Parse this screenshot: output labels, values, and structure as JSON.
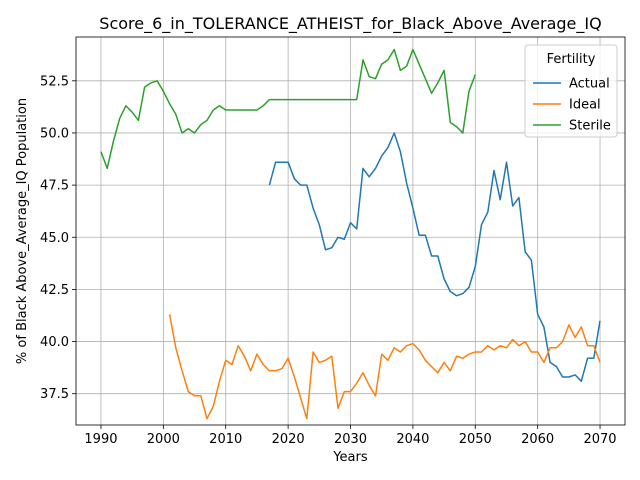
{
  "chart_data": {
    "type": "line",
    "title": "Score_6_in_TOLERANCE_ATHEIST_for_Black_Above_Average_IQ",
    "xlabel": "Years",
    "ylabel": "% of Black Above_Average_IQ Population",
    "xlim": [
      1986.0,
      2074.0
    ],
    "ylim": [
      36.0,
      54.6
    ],
    "xticks": [
      1990,
      2000,
      2010,
      2020,
      2030,
      2040,
      2050,
      2060,
      2070
    ],
    "yticks": [
      37.5,
      40.0,
      42.5,
      45.0,
      47.5,
      50.0,
      52.5
    ],
    "ytick_labels": [
      "37.5",
      "40.0",
      "42.5",
      "45.0",
      "47.5",
      "50.0",
      "52.5"
    ],
    "grid": true,
    "legend": {
      "title": "Fertility",
      "placement": "top-right"
    },
    "series": [
      {
        "name": "Actual",
        "color": "#1f77b4",
        "x": [
          2017,
          2018,
          2019,
          2020,
          2021,
          2022,
          2023,
          2024,
          2025,
          2026,
          2027,
          2028,
          2029,
          2030,
          2031,
          2032,
          2033,
          2034,
          2035,
          2036,
          2037,
          2038,
          2039,
          2040,
          2041,
          2042,
          2043,
          2044,
          2045,
          2046,
          2047,
          2048,
          2049,
          2050,
          2051,
          2052,
          2053,
          2054,
          2055,
          2056,
          2057,
          2058,
          2059,
          2060,
          2061,
          2062,
          2063,
          2064,
          2065,
          2066,
          2067,
          2068,
          2069,
          2070
        ],
        "y": [
          47.5,
          48.6,
          48.6,
          48.6,
          47.8,
          47.5,
          47.5,
          46.4,
          45.6,
          44.4,
          44.5,
          45.0,
          44.9,
          45.7,
          45.4,
          48.3,
          47.9,
          48.3,
          48.9,
          49.3,
          50.0,
          49.1,
          47.6,
          46.4,
          45.1,
          45.1,
          44.1,
          44.1,
          43.0,
          42.4,
          42.2,
          42.3,
          42.6,
          43.6,
          45.6,
          46.2,
          48.2,
          46.8,
          48.6,
          46.5,
          46.9,
          44.3,
          43.9,
          41.3,
          40.7,
          39.0,
          38.8,
          38.3,
          38.3,
          38.4,
          38.1,
          39.2,
          39.2,
          41.0
        ]
      },
      {
        "name": "Ideal",
        "color": "#ff7f0e",
        "x": [
          2001,
          2002,
          2003,
          2004,
          2005,
          2006,
          2007,
          2008,
          2009,
          2010,
          2011,
          2012,
          2013,
          2014,
          2015,
          2016,
          2017,
          2018,
          2019,
          2020,
          2021,
          2022,
          2023,
          2024,
          2025,
          2026,
          2027,
          2028,
          2029,
          2030,
          2031,
          2032,
          2033,
          2034,
          2035,
          2036,
          2037,
          2038,
          2039,
          2040,
          2041,
          2042,
          2043,
          2044,
          2045,
          2046,
          2047,
          2048,
          2049,
          2050,
          2051,
          2052,
          2053,
          2054,
          2055,
          2056,
          2057,
          2058,
          2059,
          2060,
          2061,
          2062,
          2063,
          2064,
          2065,
          2066,
          2067,
          2068,
          2069,
          2070
        ],
        "y": [
          41.3,
          39.7,
          38.6,
          37.6,
          37.4,
          37.4,
          36.3,
          36.9,
          38.1,
          39.1,
          38.9,
          39.8,
          39.3,
          38.6,
          39.4,
          38.9,
          38.6,
          38.6,
          38.7,
          39.2,
          38.3,
          37.3,
          36.3,
          39.5,
          39.0,
          39.1,
          39.3,
          36.8,
          37.6,
          37.6,
          38.0,
          38.5,
          37.9,
          37.4,
          39.4,
          39.1,
          39.7,
          39.5,
          39.8,
          39.9,
          39.6,
          39.1,
          38.8,
          38.5,
          39.0,
          38.6,
          39.3,
          39.2,
          39.4,
          39.5,
          39.5,
          39.8,
          39.6,
          39.8,
          39.7,
          40.1,
          39.8,
          40.0,
          39.5,
          39.5,
          39.0,
          39.7,
          39.7,
          40.0,
          40.8,
          40.2,
          40.7,
          39.8,
          39.8,
          39.0
        ]
      },
      {
        "name": "Sterile",
        "color": "#2ca02c",
        "x": [
          1990,
          1991,
          1992,
          1993,
          1994,
          1995,
          1996,
          1997,
          1998,
          1999,
          2000,
          2001,
          2002,
          2003,
          2004,
          2005,
          2006,
          2007,
          2008,
          2009,
          2010,
          2015,
          2016,
          2017,
          2030,
          2031,
          2032,
          2033,
          2034,
          2035,
          2036,
          2037,
          2038,
          2039,
          2040,
          2041,
          2042,
          2043,
          2044,
          2045,
          2046,
          2047,
          2048,
          2049,
          2050
        ],
        "y": [
          49.1,
          48.3,
          49.6,
          50.7,
          51.3,
          51.0,
          50.6,
          52.2,
          52.4,
          52.5,
          52.0,
          51.4,
          50.9,
          50.0,
          50.2,
          50.0,
          50.4,
          50.6,
          51.1,
          51.3,
          51.1,
          51.1,
          51.3,
          51.6,
          51.6,
          51.6,
          53.5,
          52.7,
          52.6,
          53.3,
          53.5,
          54.0,
          53.0,
          53.2,
          54.0,
          53.3,
          52.6,
          51.9,
          52.4,
          53.0,
          50.5,
          50.3,
          50.0,
          52.0,
          52.8
        ]
      }
    ]
  }
}
